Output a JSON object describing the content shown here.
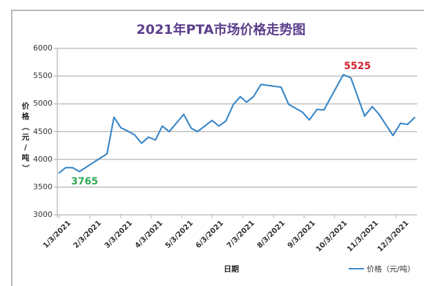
{
  "chart_data": {
    "type": "line",
    "title": "2021年PTA市场价格走势图",
    "xlabel": "日期",
    "ylabel": "价格（元/吨）",
    "ylim": [
      3000,
      6000
    ],
    "yticks": [
      "6000",
      "5500",
      "5000",
      "4500",
      "4000",
      "3500",
      "3000"
    ],
    "xticks": [
      "1/3/2021",
      "2/3/2021",
      "3/3/2021",
      "4/3/2021",
      "5/3/2021",
      "6/3/2021",
      "7/3/2021",
      "8/3/2021",
      "9/3/2021",
      "10/3/2021",
      "11/3/2021",
      "12/3/2021"
    ],
    "grid": true,
    "legend_position": "bottom-right",
    "series": [
      {
        "name": "价格（元/吨）",
        "color": "#3a87c8",
        "points": [
          {
            "x": 85,
            "v": 3750
          },
          {
            "x": 95,
            "v": 3850
          },
          {
            "x": 105,
            "v": 3850
          },
          {
            "x": 115,
            "v": 3780
          },
          {
            "x": 155,
            "v": 4100
          },
          {
            "x": 165,
            "v": 4760
          },
          {
            "x": 175,
            "v": 4570
          },
          {
            "x": 185,
            "v": 4510
          },
          {
            "x": 195,
            "v": 4440
          },
          {
            "x": 205,
            "v": 4290
          },
          {
            "x": 215,
            "v": 4400
          },
          {
            "x": 225,
            "v": 4350
          },
          {
            "x": 235,
            "v": 4600
          },
          {
            "x": 245,
            "v": 4500
          },
          {
            "x": 266,
            "v": 4810
          },
          {
            "x": 277,
            "v": 4560
          },
          {
            "x": 286,
            "v": 4500
          },
          {
            "x": 307,
            "v": 4700
          },
          {
            "x": 317,
            "v": 4600
          },
          {
            "x": 327,
            "v": 4690
          },
          {
            "x": 338,
            "v": 4990
          },
          {
            "x": 348,
            "v": 5130
          },
          {
            "x": 357,
            "v": 5030
          },
          {
            "x": 367,
            "v": 5130
          },
          {
            "x": 378,
            "v": 5350
          },
          {
            "x": 407,
            "v": 5300
          },
          {
            "x": 418,
            "v": 4990
          },
          {
            "x": 438,
            "v": 4850
          },
          {
            "x": 448,
            "v": 4710
          },
          {
            "x": 459,
            "v": 4900
          },
          {
            "x": 469,
            "v": 4890
          },
          {
            "x": 497,
            "v": 5525
          },
          {
            "x": 508,
            "v": 5470
          },
          {
            "x": 528,
            "v": 4780
          },
          {
            "x": 539,
            "v": 4950
          },
          {
            "x": 549,
            "v": 4810
          },
          {
            "x": 569,
            "v": 4430
          },
          {
            "x": 580,
            "v": 4650
          },
          {
            "x": 590,
            "v": 4630
          },
          {
            "x": 601,
            "v": 4760
          }
        ]
      }
    ],
    "annotations": [
      {
        "text": "3765",
        "color": "#2fa84f",
        "label": "low"
      },
      {
        "text": "5525",
        "color": "#d0202e",
        "label": "high"
      }
    ]
  },
  "ui": {
    "title": "2021年PTA市场价格走势图",
    "ylabel_chars": [
      "价",
      "格",
      "（",
      "元",
      "/",
      "吨",
      "）"
    ],
    "xlabel": "日期",
    "legend_label": "价格（元/吨）",
    "low_label": "3765",
    "high_label": "5525"
  }
}
